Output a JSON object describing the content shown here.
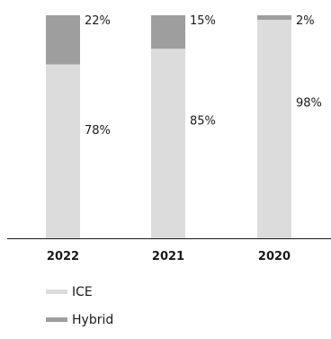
{
  "chart_data": {
    "type": "bar",
    "stacked": true,
    "categories": [
      "2022",
      "2021",
      "2020"
    ],
    "ylim": [
      0,
      100
    ],
    "grid": false,
    "legend_position": "bottom-left",
    "series": [
      {
        "name": "ICE",
        "values": [
          78,
          85,
          98
        ],
        "labels": [
          "78%",
          "85%",
          "98%"
        ],
        "color": "#dcdcdc"
      },
      {
        "name": "Hybrid",
        "values": [
          22,
          15,
          2
        ],
        "labels": [
          "22%",
          "15%",
          "2%"
        ],
        "color": "#9e9e9e"
      }
    ]
  },
  "colors": {
    "axis": "#1a1a1a",
    "text": "#1a1a1a"
  }
}
